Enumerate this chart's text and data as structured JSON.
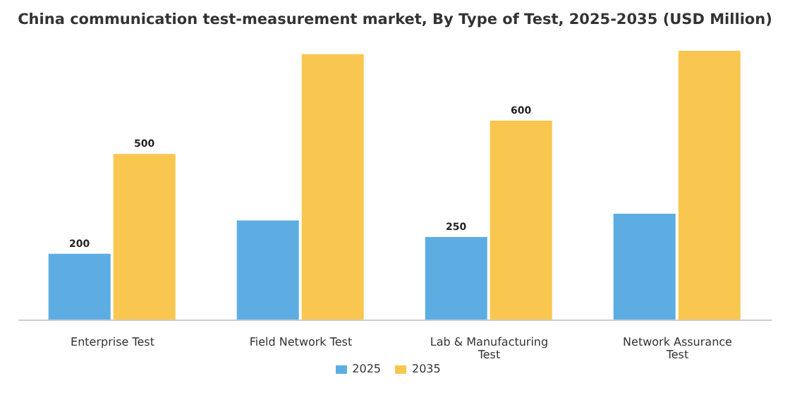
{
  "chart_data": {
    "type": "bar",
    "title": "China communication test-measurement market, By Type of Test, 2025-2035 (USD Million)",
    "categories": [
      "Enterprise Test",
      "Field Network Test",
      "Lab & Manufacturing Test",
      "Network Assurance Test"
    ],
    "series": [
      {
        "name": "2025",
        "color": "#5dade2",
        "values": [
          200,
          300,
          250,
          320
        ],
        "value_labels": [
          "200",
          null,
          "250",
          null
        ]
      },
      {
        "name": "2035",
        "color": "#f9c74f",
        "values": [
          500,
          800,
          600,
          810
        ],
        "value_labels": [
          "500",
          null,
          "600",
          null
        ]
      }
    ],
    "legend": "bottom",
    "grid": false
  }
}
